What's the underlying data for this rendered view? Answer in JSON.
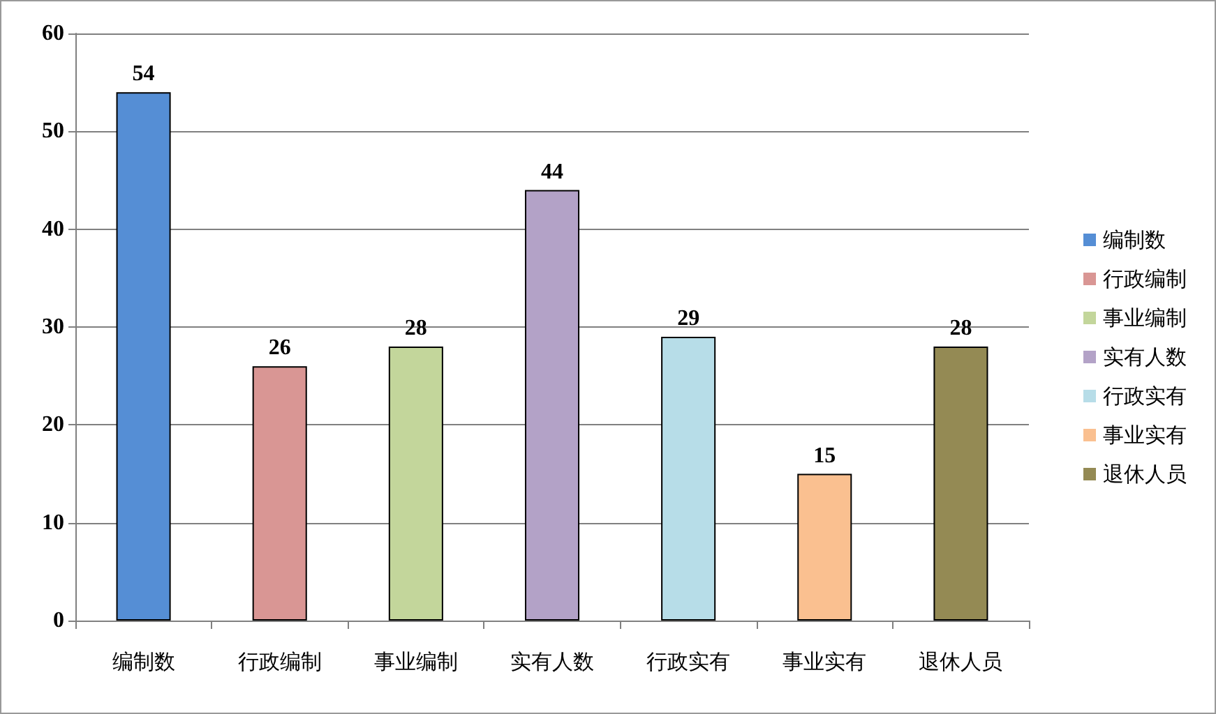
{
  "chart_data": {
    "type": "bar",
    "categories": [
      "编制数",
      "行政编制",
      "事业编制",
      "实有人数",
      "行政实有",
      "事业实有",
      "退休人员"
    ],
    "series": [
      {
        "name": "编制数",
        "color": "#558ed5",
        "values": [
          54,
          null,
          null,
          null,
          null,
          null,
          null
        ]
      },
      {
        "name": "行政编制",
        "color": "#d99694",
        "values": [
          null,
          26,
          null,
          null,
          null,
          null,
          null
        ]
      },
      {
        "name": "事业编制",
        "color": "#c3d69b",
        "values": [
          null,
          null,
          28,
          null,
          null,
          null,
          null
        ]
      },
      {
        "name": "实有人数",
        "color": "#b3a2c7",
        "values": [
          null,
          null,
          null,
          44,
          null,
          null,
          null
        ]
      },
      {
        "name": "行政实有",
        "color": "#b7dde8",
        "values": [
          null,
          null,
          null,
          null,
          29,
          null,
          null
        ]
      },
      {
        "name": "事业实有",
        "color": "#fac090",
        "values": [
          null,
          null,
          null,
          null,
          null,
          15,
          null
        ]
      },
      {
        "name": "退休人员",
        "color": "#948a54",
        "values": [
          null,
          null,
          null,
          null,
          null,
          null,
          28
        ]
      }
    ],
    "stacked": true,
    "ylim": [
      0,
      60
    ],
    "yticks": [
      0,
      10,
      20,
      30,
      40,
      50,
      60
    ],
    "grid": "y",
    "legend": "right",
    "data_labels": true
  }
}
